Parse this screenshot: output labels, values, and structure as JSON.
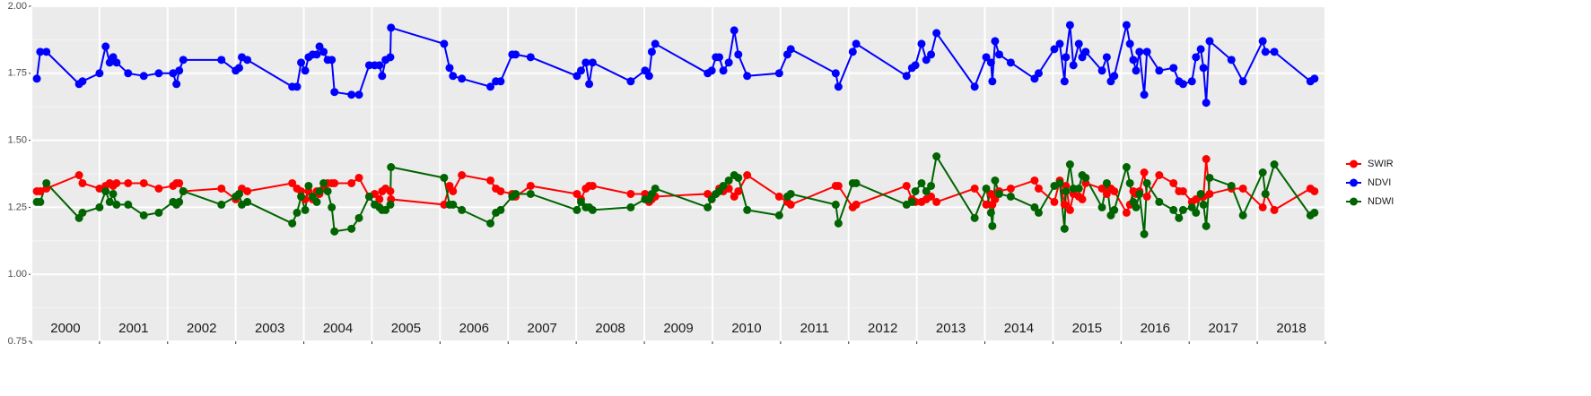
{
  "chart_data": {
    "type": "line",
    "series_order_note_free": null,
    "x": [
      2000.08,
      2000.13,
      2000.22,
      2000.7,
      2000.75,
      2001.0,
      2001.09,
      2001.15,
      2001.2,
      2001.25,
      2001.42,
      2001.65,
      2001.87,
      2002.08,
      2002.13,
      2002.17,
      2002.23,
      2002.79,
      2003.0,
      2003.05,
      2003.09,
      2003.17,
      2003.83,
      2003.9,
      2003.96,
      2004.02,
      2004.07,
      2004.13,
      2004.19,
      2004.23,
      2004.29,
      2004.35,
      2004.41,
      2004.45,
      2004.7,
      2004.81,
      2004.96,
      2005.04,
      2005.11,
      2005.15,
      2005.2,
      2005.27,
      2005.28,
      2006.06,
      2006.14,
      2006.19,
      2006.32,
      2006.74,
      2006.82,
      2006.89,
      2007.06,
      2007.11,
      2007.33,
      2008.01,
      2008.07,
      2008.14,
      2008.19,
      2008.24,
      2008.8,
      2009.01,
      2009.07,
      2009.11,
      2009.16,
      2009.93,
      2009.99,
      2010.05,
      2010.1,
      2010.16,
      2010.24,
      2010.32,
      2010.38,
      2010.51,
      2010.98,
      2011.1,
      2011.15,
      2011.81,
      2011.85,
      2012.06,
      2012.11,
      2012.85,
      2012.93,
      2012.98,
      2013.07,
      2013.14,
      2013.21,
      2013.29,
      2013.85,
      2014.02,
      2014.09,
      2014.11,
      2014.15,
      2014.21,
      2014.38,
      2014.73,
      2014.79,
      2015.02,
      2015.1,
      2015.17,
      2015.19,
      2015.25,
      2015.3,
      2015.38,
      2015.43,
      2015.48,
      2015.72,
      2015.79,
      2015.85,
      2015.9,
      2016.08,
      2016.13,
      2016.18,
      2016.22,
      2016.27,
      2016.34,
      2016.38,
      2016.56,
      2016.77,
      2016.85,
      2016.91,
      2017.04,
      2017.1,
      2017.17,
      2017.21,
      2017.25,
      2017.3,
      2017.62,
      2017.79,
      2018.08,
      2018.12,
      2018.25,
      2018.78,
      2018.84
    ],
    "series": [
      {
        "name": "SWIR",
        "color": "#ff0000",
        "values": [
          1.31,
          1.31,
          1.32,
          1.37,
          1.34,
          1.32,
          1.33,
          1.34,
          1.33,
          1.34,
          1.34,
          1.34,
          1.32,
          1.33,
          1.34,
          1.34,
          1.31,
          1.32,
          1.28,
          1.3,
          1.32,
          1.31,
          1.34,
          1.32,
          1.31,
          1.28,
          1.31,
          1.28,
          1.31,
          1.3,
          1.32,
          1.34,
          1.34,
          1.34,
          1.34,
          1.36,
          1.29,
          1.3,
          1.28,
          1.31,
          1.32,
          1.31,
          1.28,
          1.26,
          1.33,
          1.31,
          1.37,
          1.35,
          1.32,
          1.31,
          1.3,
          1.29,
          1.33,
          1.3,
          1.28,
          1.32,
          1.33,
          1.33,
          1.3,
          1.3,
          1.27,
          1.28,
          1.29,
          1.3,
          1.29,
          1.3,
          1.32,
          1.31,
          1.32,
          1.29,
          1.31,
          1.37,
          1.29,
          1.27,
          1.26,
          1.33,
          1.33,
          1.25,
          1.26,
          1.33,
          1.28,
          1.27,
          1.27,
          1.28,
          1.29,
          1.27,
          1.32,
          1.26,
          1.3,
          1.26,
          1.28,
          1.31,
          1.32,
          1.35,
          1.32,
          1.27,
          1.35,
          1.26,
          1.33,
          1.24,
          1.3,
          1.29,
          1.28,
          1.34,
          1.32,
          1.3,
          1.32,
          1.31,
          1.23,
          1.26,
          1.31,
          1.3,
          1.31,
          1.38,
          1.29,
          1.37,
          1.34,
          1.31,
          1.31,
          1.27,
          1.28,
          1.29,
          1.29,
          1.43,
          1.3,
          1.32,
          1.32,
          1.25,
          1.3,
          1.24,
          1.32,
          1.31
        ]
      },
      {
        "name": "NDVI",
        "color": "#0000ff",
        "values": [
          1.73,
          1.83,
          1.83,
          1.71,
          1.72,
          1.75,
          1.85,
          1.79,
          1.81,
          1.79,
          1.75,
          1.74,
          1.75,
          1.75,
          1.71,
          1.76,
          1.8,
          1.8,
          1.76,
          1.77,
          1.81,
          1.8,
          1.7,
          1.7,
          1.79,
          1.76,
          1.81,
          1.82,
          1.82,
          1.85,
          1.83,
          1.8,
          1.8,
          1.68,
          1.67,
          1.67,
          1.78,
          1.78,
          1.78,
          1.74,
          1.8,
          1.81,
          1.92,
          1.86,
          1.77,
          1.74,
          1.73,
          1.7,
          1.72,
          1.72,
          1.82,
          1.82,
          1.81,
          1.74,
          1.76,
          1.79,
          1.71,
          1.79,
          1.72,
          1.76,
          1.74,
          1.83,
          1.86,
          1.75,
          1.76,
          1.81,
          1.81,
          1.76,
          1.79,
          1.91,
          1.82,
          1.74,
          1.75,
          1.82,
          1.84,
          1.75,
          1.7,
          1.83,
          1.86,
          1.74,
          1.77,
          1.78,
          1.86,
          1.8,
          1.82,
          1.9,
          1.7,
          1.81,
          1.79,
          1.72,
          1.87,
          1.82,
          1.79,
          1.73,
          1.75,
          1.84,
          1.86,
          1.72,
          1.81,
          1.93,
          1.78,
          1.86,
          1.81,
          1.83,
          1.76,
          1.81,
          1.72,
          1.74,
          1.93,
          1.86,
          1.8,
          1.76,
          1.83,
          1.67,
          1.83,
          1.76,
          1.77,
          1.72,
          1.71,
          1.72,
          1.81,
          1.84,
          1.77,
          1.64,
          1.87,
          1.8,
          1.72,
          1.87,
          1.83,
          1.83,
          1.72,
          1.73
        ]
      },
      {
        "name": "NDWI",
        "color": "#006400",
        "values": [
          1.27,
          1.27,
          1.34,
          1.21,
          1.23,
          1.25,
          1.31,
          1.27,
          1.3,
          1.26,
          1.26,
          1.22,
          1.23,
          1.27,
          1.26,
          1.27,
          1.31,
          1.26,
          1.29,
          1.3,
          1.26,
          1.27,
          1.19,
          1.23,
          1.29,
          1.24,
          1.33,
          1.29,
          1.27,
          1.31,
          1.34,
          1.31,
          1.25,
          1.16,
          1.17,
          1.21,
          1.29,
          1.26,
          1.25,
          1.24,
          1.24,
          1.26,
          1.4,
          1.36,
          1.26,
          1.26,
          1.24,
          1.19,
          1.23,
          1.24,
          1.29,
          1.3,
          1.3,
          1.24,
          1.27,
          1.25,
          1.25,
          1.24,
          1.25,
          1.28,
          1.28,
          1.3,
          1.32,
          1.25,
          1.28,
          1.3,
          1.31,
          1.33,
          1.35,
          1.37,
          1.36,
          1.24,
          1.22,
          1.29,
          1.3,
          1.26,
          1.19,
          1.34,
          1.34,
          1.26,
          1.27,
          1.31,
          1.34,
          1.31,
          1.33,
          1.44,
          1.21,
          1.32,
          1.23,
          1.18,
          1.35,
          1.3,
          1.29,
          1.25,
          1.23,
          1.33,
          1.34,
          1.17,
          1.31,
          1.41,
          1.32,
          1.32,
          1.37,
          1.36,
          1.25,
          1.34,
          1.22,
          1.24,
          1.4,
          1.34,
          1.27,
          1.25,
          1.3,
          1.15,
          1.34,
          1.27,
          1.24,
          1.21,
          1.24,
          1.25,
          1.23,
          1.3,
          1.26,
          1.18,
          1.36,
          1.33,
          1.22,
          1.38,
          1.3,
          1.41,
          1.22,
          1.23
        ]
      }
    ],
    "xlim": [
      2000,
      2019
    ],
    "xbreaks": [
      2000,
      2001,
      2002,
      2003,
      2004,
      2005,
      2006,
      2007,
      2008,
      2009,
      2010,
      2011,
      2012,
      2013,
      2014,
      2015,
      2016,
      2017,
      2018,
      2019
    ],
    "year_labels": [
      "2000",
      "2001",
      "2002",
      "2003",
      "2004",
      "2005",
      "2006",
      "2007",
      "2008",
      "2009",
      "2010",
      "2011",
      "2012",
      "2013",
      "2014",
      "2015",
      "2016",
      "2017",
      "2018"
    ],
    "ylim": [
      0.75,
      2
    ],
    "yticks": [
      0.75,
      {
        "value": 1,
        "label": "1.00"
      },
      1.25,
      {
        "value": 1.5,
        "label": "1.50"
      },
      1.75,
      {
        "value": 2,
        "label": "2.00"
      }
    ],
    "grid": true,
    "legend": "right"
  }
}
